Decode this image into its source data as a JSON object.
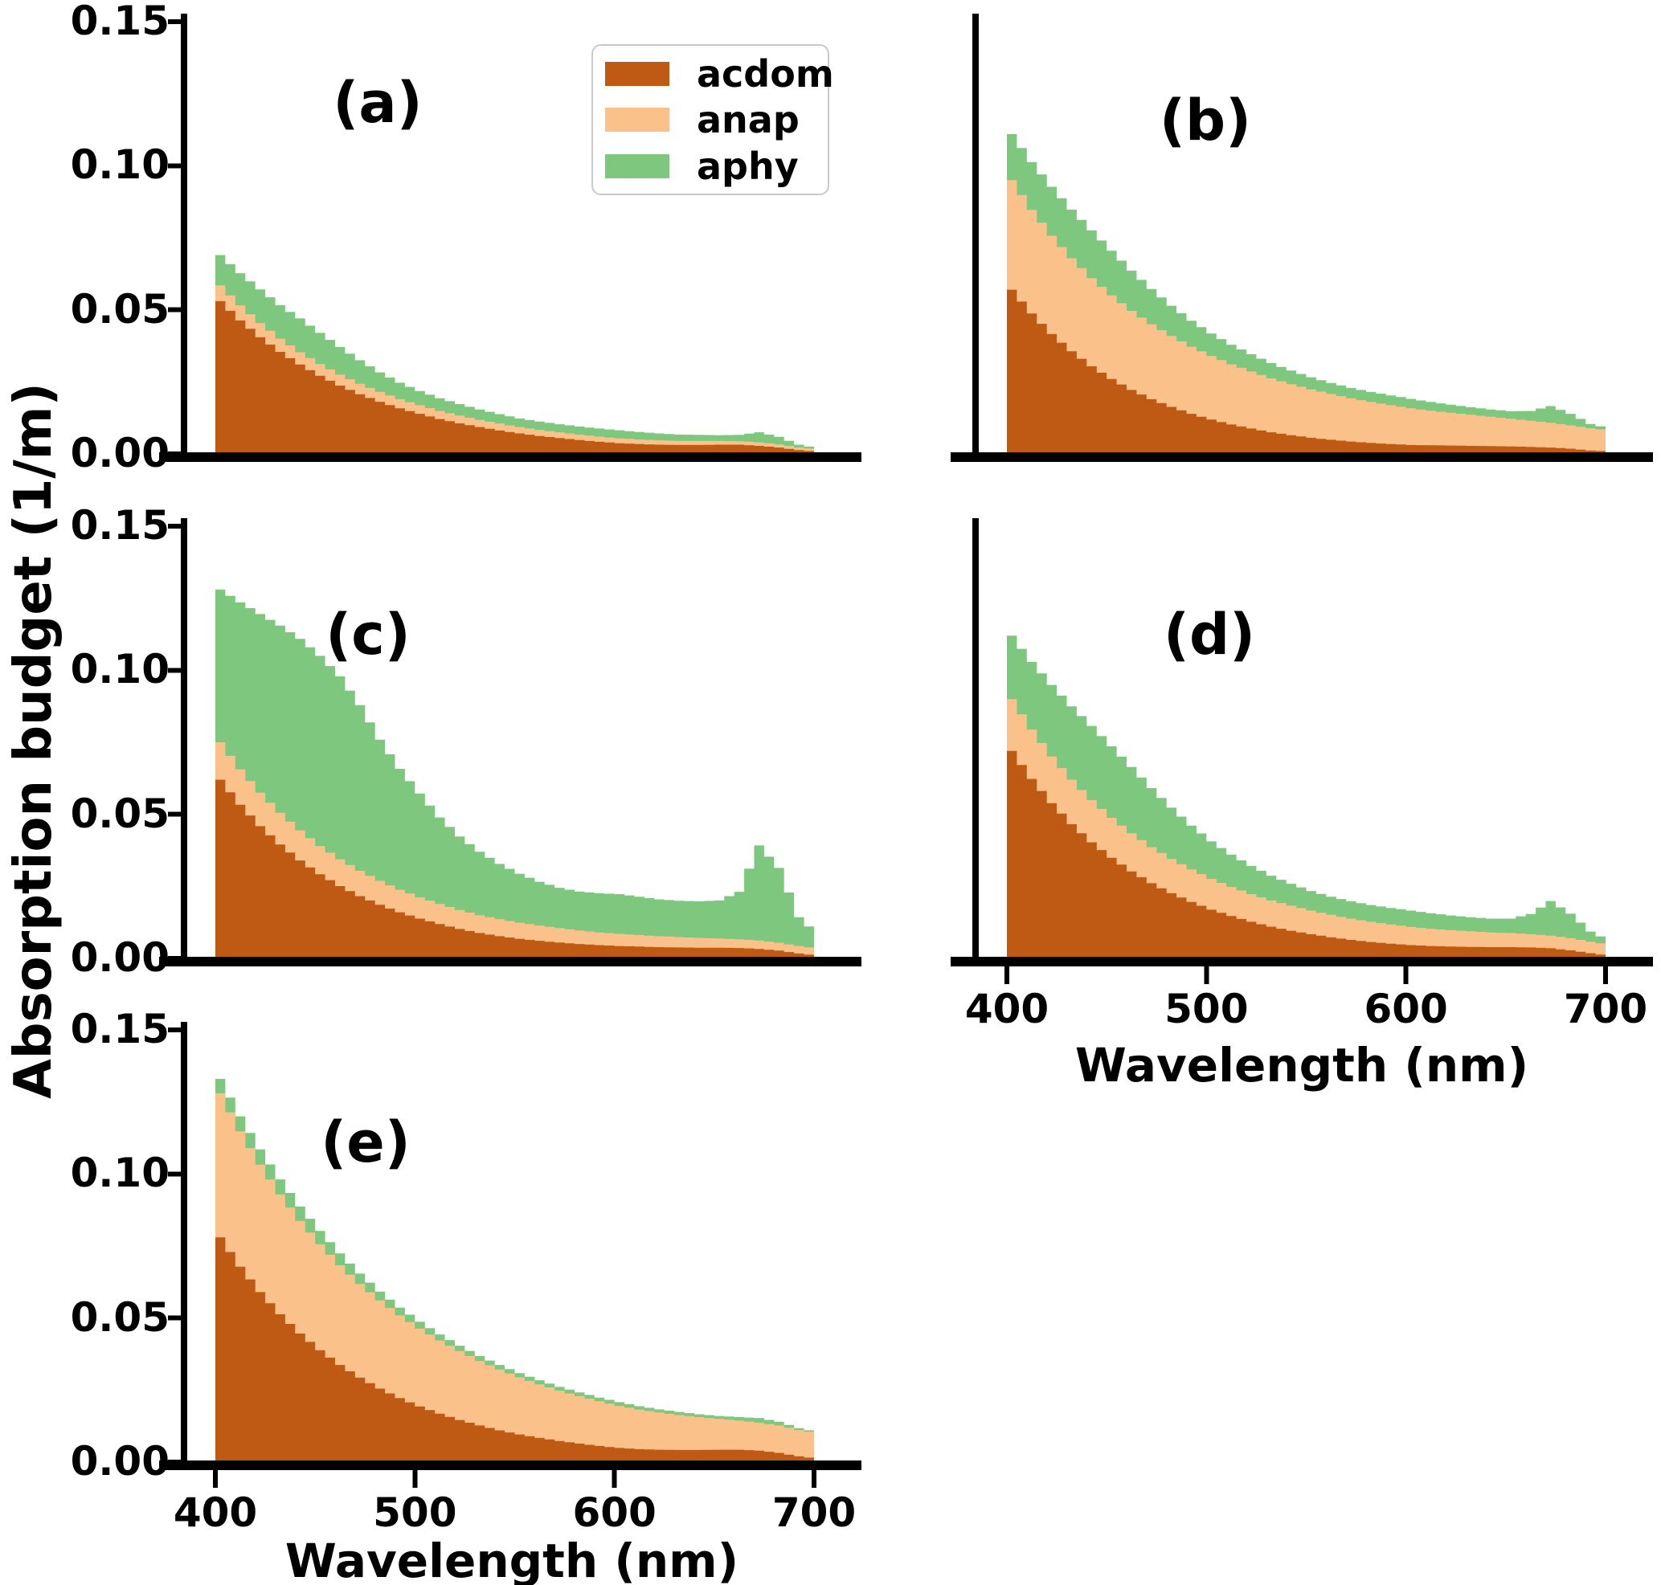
{
  "figure": {
    "ylabel": "Absorption budget (1/m)",
    "xlabel": "Wavelength (nm)",
    "background": "#ffffff",
    "axis_color": "#000000"
  },
  "legend": {
    "items": [
      {
        "label": "acdom",
        "color": "#bf5a15"
      },
      {
        "label": "anap",
        "color": "#fbc18a"
      },
      {
        "label": "aphy",
        "color": "#7dc87e"
      }
    ]
  },
  "chart_data": {
    "type": "area",
    "stacked": true,
    "stack_order": [
      "acdom",
      "anap",
      "aphy"
    ],
    "title": "",
    "xlabel": "Wavelength (nm)",
    "ylabel": "Absorption budget (1/m)",
    "xlim": [
      388,
      708
    ],
    "ylim": [
      0,
      0.15
    ],
    "grid": false,
    "legend_position": "upper right of panel (a)",
    "colors": {
      "acdom": "#bf5a15",
      "anap": "#fbc18a",
      "aphy": "#7dc87e"
    },
    "x_nm": {
      "start": 400,
      "end": 700,
      "step": 10
    },
    "yticks": [
      {
        "v": 0.15,
        "label": "0.15"
      },
      {
        "v": 0.1,
        "label": "0.10"
      },
      {
        "v": 0.05,
        "label": "0.05"
      },
      {
        "v": 0.0,
        "label": "0.00"
      }
    ],
    "xticks": [
      {
        "v": 400,
        "label": "400"
      },
      {
        "v": 500,
        "label": "500"
      },
      {
        "v": 600,
        "label": "600"
      },
      {
        "v": 700,
        "label": "700"
      }
    ],
    "panels": [
      {
        "label": "(a)",
        "acdom": [
          0.053,
          0.0463,
          0.0405,
          0.0354,
          0.031,
          0.0271,
          0.0237,
          0.0207,
          0.0181,
          0.0158,
          0.0139,
          0.0121,
          0.0106,
          0.0093,
          0.0081,
          0.0071,
          0.0062,
          0.0055,
          0.0048,
          0.0042,
          0.0037,
          0.0034,
          0.0032,
          0.0031,
          0.0031,
          0.0032,
          0.0032,
          0.0028,
          0.0022,
          0.0013,
          0.0007
        ],
        "anap": [
          0.0055,
          0.0052,
          0.0049,
          0.0046,
          0.0043,
          0.0041,
          0.0038,
          0.0036,
          0.0034,
          0.0032,
          0.003,
          0.0028,
          0.0027,
          0.0025,
          0.0024,
          0.0022,
          0.0021,
          0.002,
          0.0019,
          0.0018,
          0.0017,
          0.0016,
          0.0015,
          0.0014,
          0.0014,
          0.0013,
          0.0012,
          0.0012,
          0.0011,
          0.0009,
          0.0008
        ],
        "aphy": [
          0.0105,
          0.0112,
          0.0117,
          0.0116,
          0.0117,
          0.0108,
          0.0096,
          0.0082,
          0.0068,
          0.0057,
          0.0049,
          0.0044,
          0.004,
          0.0036,
          0.0033,
          0.003,
          0.0029,
          0.0028,
          0.0028,
          0.0028,
          0.0028,
          0.0026,
          0.0024,
          0.0022,
          0.0021,
          0.002,
          0.0022,
          0.0035,
          0.0026,
          0.001,
          0.0004
        ]
      },
      {
        "label": "(b)",
        "acdom": [
          0.057,
          0.0487,
          0.0416,
          0.0356,
          0.0304,
          0.026,
          0.0222,
          0.019,
          0.0163,
          0.0139,
          0.0119,
          0.0102,
          0.0088,
          0.0075,
          0.0065,
          0.0056,
          0.0049,
          0.0043,
          0.0038,
          0.0034,
          0.0031,
          0.003,
          0.0029,
          0.0028,
          0.0027,
          0.0026,
          0.0024,
          0.0022,
          0.0018,
          0.0012,
          0.0008
        ],
        "anap": [
          0.038,
          0.036,
          0.0341,
          0.0323,
          0.0306,
          0.029,
          0.0274,
          0.026,
          0.0246,
          0.0233,
          0.0221,
          0.0209,
          0.0198,
          0.0187,
          0.0177,
          0.0168,
          0.0159,
          0.015,
          0.0142,
          0.0135,
          0.0127,
          0.012,
          0.0114,
          0.0108,
          0.0102,
          0.0096,
          0.0091,
          0.0086,
          0.0081,
          0.0077,
          0.0073
        ],
        "aphy": [
          0.016,
          0.0166,
          0.017,
          0.0169,
          0.0166,
          0.0155,
          0.014,
          0.0122,
          0.0105,
          0.009,
          0.0078,
          0.0068,
          0.006,
          0.0053,
          0.0047,
          0.0042,
          0.0038,
          0.0036,
          0.0035,
          0.0034,
          0.0033,
          0.003,
          0.0028,
          0.0026,
          0.0025,
          0.0026,
          0.0034,
          0.0058,
          0.004,
          0.0015,
          0.0007
        ]
      },
      {
        "label": "(c)",
        "acdom": [
          0.062,
          0.0533,
          0.0459,
          0.0395,
          0.034,
          0.0292,
          0.0251,
          0.0216,
          0.0186,
          0.016,
          0.0138,
          0.0119,
          0.0102,
          0.0088,
          0.0077,
          0.0068,
          0.0061,
          0.0055,
          0.005,
          0.0046,
          0.0043,
          0.0041,
          0.0039,
          0.0038,
          0.0037,
          0.0037,
          0.0036,
          0.0033,
          0.0027,
          0.0017,
          0.0009
        ],
        "anap": [
          0.013,
          0.0123,
          0.0116,
          0.011,
          0.0104,
          0.0098,
          0.0093,
          0.0088,
          0.0083,
          0.0078,
          0.0074,
          0.007,
          0.0066,
          0.0062,
          0.0059,
          0.0056,
          0.0053,
          0.005,
          0.0047,
          0.0044,
          0.0042,
          0.004,
          0.0038,
          0.0036,
          0.0034,
          0.0032,
          0.003,
          0.0029,
          0.0027,
          0.0026,
          0.0025
        ],
        "aphy": [
          0.053,
          0.058,
          0.062,
          0.065,
          0.0665,
          0.066,
          0.0635,
          0.0575,
          0.049,
          0.042,
          0.036,
          0.03,
          0.0255,
          0.022,
          0.0192,
          0.017,
          0.0152,
          0.014,
          0.0135,
          0.0136,
          0.0138,
          0.0133,
          0.0128,
          0.0126,
          0.0127,
          0.0132,
          0.0165,
          0.033,
          0.026,
          0.01,
          0.0045
        ]
      },
      {
        "label": "(d)",
        "acdom": [
          0.072,
          0.0623,
          0.0539,
          0.0466,
          0.0403,
          0.0349,
          0.0302,
          0.0261,
          0.0226,
          0.0196,
          0.0169,
          0.0147,
          0.0127,
          0.011,
          0.0096,
          0.0084,
          0.0073,
          0.0064,
          0.0057,
          0.0051,
          0.0046,
          0.0043,
          0.0041,
          0.004,
          0.0039,
          0.0039,
          0.0038,
          0.0035,
          0.0028,
          0.0018,
          0.0008
        ],
        "anap": [
          0.018,
          0.0171,
          0.0162,
          0.0154,
          0.0146,
          0.0139,
          0.0132,
          0.0125,
          0.0119,
          0.0113,
          0.0107,
          0.0101,
          0.0096,
          0.0091,
          0.0087,
          0.0082,
          0.0078,
          0.0074,
          0.007,
          0.0067,
          0.0063,
          0.006,
          0.0057,
          0.0054,
          0.0051,
          0.0049,
          0.0046,
          0.0044,
          0.0042,
          0.004,
          0.0038
        ],
        "aphy": [
          0.022,
          0.0235,
          0.0248,
          0.0255,
          0.0258,
          0.0248,
          0.023,
          0.0205,
          0.0178,
          0.0152,
          0.013,
          0.0112,
          0.0098,
          0.0086,
          0.0076,
          0.0068,
          0.0063,
          0.006,
          0.0058,
          0.0057,
          0.0057,
          0.0054,
          0.0051,
          0.0049,
          0.0048,
          0.005,
          0.007,
          0.012,
          0.0085,
          0.0035,
          0.0014
        ]
      },
      {
        "label": "(e)",
        "acdom": [
          0.078,
          0.0678,
          0.059,
          0.0513,
          0.0446,
          0.0388,
          0.0337,
          0.0293,
          0.0255,
          0.0222,
          0.0193,
          0.0168,
          0.0146,
          0.0127,
          0.011,
          0.0096,
          0.0084,
          0.0073,
          0.0064,
          0.0056,
          0.0049,
          0.0045,
          0.0043,
          0.0042,
          0.0042,
          0.0043,
          0.0043,
          0.004,
          0.0032,
          0.002,
          0.0011
        ],
        "anap": [
          0.05,
          0.047,
          0.0442,
          0.0416,
          0.0391,
          0.0368,
          0.0346,
          0.0325,
          0.0306,
          0.0287,
          0.027,
          0.0254,
          0.0239,
          0.0224,
          0.0211,
          0.0198,
          0.0186,
          0.0175,
          0.0165,
          0.0155,
          0.0146,
          0.0137,
          0.0129,
          0.0121,
          0.0114,
          0.0107,
          0.0101,
          0.0097,
          0.0095,
          0.0091,
          0.0088
        ],
        "aphy": [
          0.005,
          0.0052,
          0.0053,
          0.0052,
          0.005,
          0.0046,
          0.0041,
          0.0036,
          0.0031,
          0.0027,
          0.0024,
          0.0021,
          0.0019,
          0.0017,
          0.0016,
          0.0015,
          0.0014,
          0.0013,
          0.0013,
          0.0013,
          0.0013,
          0.0012,
          0.0011,
          0.0011,
          0.001,
          0.001,
          0.0012,
          0.0016,
          0.0013,
          0.0007,
          0.0004
        ]
      }
    ]
  }
}
